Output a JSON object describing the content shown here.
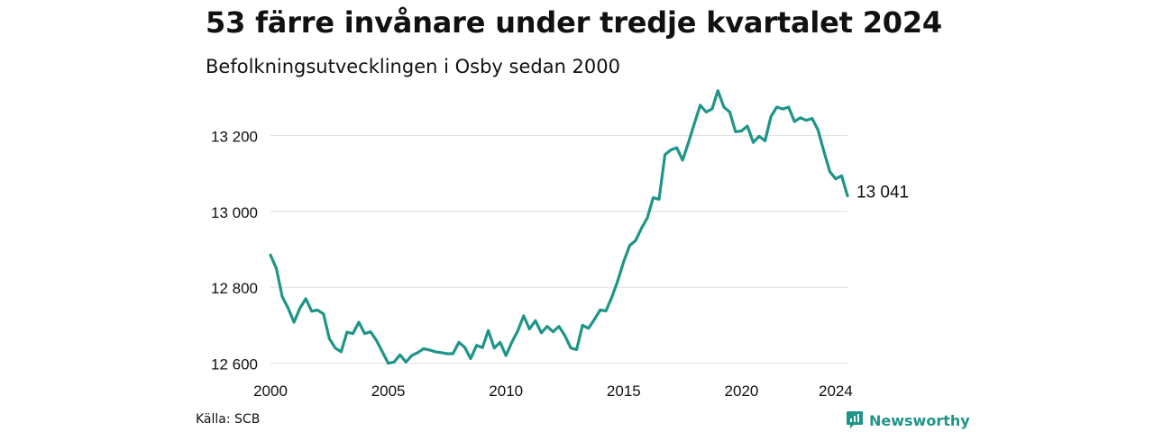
{
  "title": "53 färre invånare under tredje kvartalet 2024",
  "subtitle": "Befolkningsutvecklingen i Osby sedan 2000",
  "source": "Källa: SCB",
  "brand": "Newsworthy",
  "colors": {
    "line": "#1e9588",
    "grid": "#dedede",
    "text": "#111111",
    "brand": "#1e9588"
  },
  "chart_data": {
    "type": "line",
    "x_unit": "quarter",
    "ylim": [
      12580,
      13320
    ],
    "xlim": [
      2000,
      2024.5
    ],
    "y_ticks": [
      {
        "value": 12600,
        "label": "12 600"
      },
      {
        "value": 12800,
        "label": "12 800"
      },
      {
        "value": 13000,
        "label": "13 000"
      },
      {
        "value": 13200,
        "label": "13 200"
      }
    ],
    "x_ticks": [
      {
        "value": 2000,
        "label": "2000"
      },
      {
        "value": 2005,
        "label": "2005"
      },
      {
        "value": 2010,
        "label": "2010"
      },
      {
        "value": 2015,
        "label": "2015"
      },
      {
        "value": 2020,
        "label": "2020"
      },
      {
        "value": 2024,
        "label": "2024"
      }
    ],
    "grid": true,
    "end_label": "13 041",
    "series": [
      {
        "x": [
          "2000Q1",
          "2000Q2",
          "2000Q3",
          "2000Q4",
          "2001Q1",
          "2001Q2",
          "2001Q3",
          "2001Q4",
          "2002Q1",
          "2002Q2",
          "2002Q3",
          "2002Q4",
          "2003Q1",
          "2003Q2",
          "2003Q3",
          "2003Q4",
          "2004Q1",
          "2004Q2",
          "2004Q3",
          "2004Q4",
          "2005Q1",
          "2005Q2",
          "2005Q3",
          "2005Q4",
          "2006Q1",
          "2006Q2",
          "2006Q3",
          "2006Q4",
          "2007Q1",
          "2007Q2",
          "2007Q3",
          "2007Q4",
          "2008Q1",
          "2008Q2",
          "2008Q3",
          "2008Q4",
          "2009Q1",
          "2009Q2",
          "2009Q3",
          "2009Q4",
          "2010Q1",
          "2010Q2",
          "2010Q3",
          "2010Q4",
          "2011Q1",
          "2011Q2",
          "2011Q3",
          "2011Q4",
          "2012Q1",
          "2012Q2",
          "2012Q3",
          "2012Q4",
          "2013Q1",
          "2013Q2",
          "2013Q3",
          "2013Q4",
          "2014Q1",
          "2014Q2",
          "2014Q3",
          "2014Q4",
          "2015Q1",
          "2015Q2",
          "2015Q3",
          "2015Q4",
          "2016Q1",
          "2016Q2",
          "2016Q3",
          "2016Q4",
          "2017Q1",
          "2017Q2",
          "2017Q3",
          "2017Q4",
          "2018Q1",
          "2018Q2",
          "2018Q3",
          "2018Q4",
          "2019Q1",
          "2019Q2",
          "2019Q3",
          "2019Q4",
          "2020Q1",
          "2020Q2",
          "2020Q3",
          "2020Q4",
          "2021Q1",
          "2021Q2",
          "2021Q3",
          "2021Q4",
          "2022Q1",
          "2022Q2",
          "2022Q3",
          "2022Q4",
          "2023Q1",
          "2023Q2",
          "2023Q3",
          "2023Q4",
          "2024Q1",
          "2024Q2",
          "2024Q3"
        ],
        "values": [
          12885,
          12850,
          12775,
          12745,
          12708,
          12745,
          12770,
          12737,
          12740,
          12730,
          12665,
          12640,
          12630,
          12682,
          12678,
          12708,
          12678,
          12683,
          12660,
          12630,
          12600,
          12603,
          12622,
          12603,
          12620,
          12628,
          12638,
          12635,
          12630,
          12628,
          12625,
          12625,
          12655,
          12642,
          12612,
          12647,
          12641,
          12686,
          12640,
          12655,
          12620,
          12656,
          12685,
          12725,
          12690,
          12712,
          12680,
          12697,
          12683,
          12697,
          12673,
          12640,
          12636,
          12700,
          12692,
          12715,
          12740,
          12738,
          12775,
          12818,
          12868,
          12910,
          12923,
          12955,
          12983,
          13036,
          13032,
          13150,
          13162,
          13168,
          13135,
          13182,
          13232,
          13280,
          13262,
          13270,
          13318,
          13275,
          13262,
          13210,
          13212,
          13225,
          13182,
          13198,
          13186,
          13250,
          13275,
          13270,
          13275,
          13237,
          13247,
          13240,
          13245,
          13215,
          13158,
          13105,
          13086,
          13094,
          13041
        ]
      }
    ]
  }
}
